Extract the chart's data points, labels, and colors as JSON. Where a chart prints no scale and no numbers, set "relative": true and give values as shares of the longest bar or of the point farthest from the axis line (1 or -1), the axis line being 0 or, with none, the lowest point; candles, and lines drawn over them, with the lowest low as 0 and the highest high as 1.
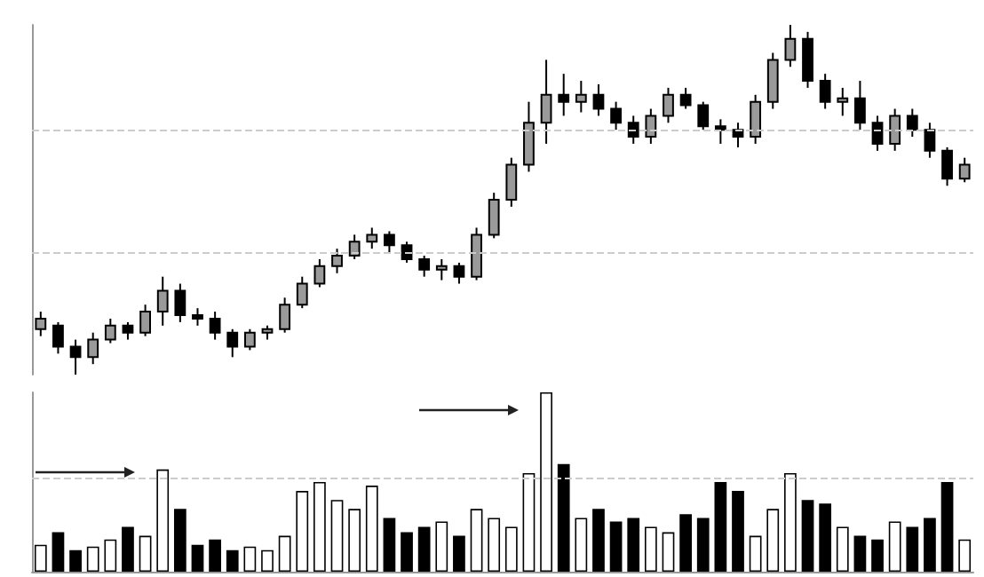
{
  "chart_data": [
    {
      "type": "candlestick",
      "relative": true,
      "color": "#000000",
      "grid": false,
      "categories": [
        null,
        null,
        null,
        null,
        null,
        null,
        null,
        null,
        null,
        null,
        null,
        null,
        null,
        null,
        null,
        null,
        null,
        null,
        null,
        null,
        null,
        null,
        null,
        null,
        null,
        null,
        null,
        null,
        null,
        null,
        null,
        null,
        null,
        null,
        null,
        null,
        null,
        null,
        null,
        null,
        null,
        null,
        null,
        null,
        null,
        null,
        null,
        null,
        null,
        null,
        null,
        null,
        null,
        null
      ],
      "ohlc": [
        [
          0.13,
          0.18,
          0.11,
          0.16
        ],
        [
          0.14,
          0.15,
          0.06,
          0.08
        ],
        [
          0.08,
          0.1,
          0.0,
          0.05
        ],
        [
          0.05,
          0.12,
          0.03,
          0.1
        ],
        [
          0.1,
          0.16,
          0.09,
          0.14
        ],
        [
          0.14,
          0.15,
          0.1,
          0.12
        ],
        [
          0.12,
          0.2,
          0.11,
          0.18
        ],
        [
          0.18,
          0.28,
          0.14,
          0.24
        ],
        [
          0.24,
          0.26,
          0.15,
          0.17
        ],
        [
          0.17,
          0.19,
          0.14,
          0.16
        ],
        [
          0.16,
          0.18,
          0.1,
          0.12
        ],
        [
          0.12,
          0.13,
          0.05,
          0.08
        ],
        [
          0.08,
          0.13,
          0.07,
          0.12
        ],
        [
          0.12,
          0.14,
          0.1,
          0.13
        ],
        [
          0.13,
          0.22,
          0.12,
          0.2
        ],
        [
          0.2,
          0.28,
          0.19,
          0.26
        ],
        [
          0.26,
          0.33,
          0.25,
          0.31
        ],
        [
          0.31,
          0.36,
          0.29,
          0.34
        ],
        [
          0.34,
          0.4,
          0.33,
          0.38
        ],
        [
          0.38,
          0.42,
          0.36,
          0.4
        ],
        [
          0.4,
          0.41,
          0.35,
          0.37
        ],
        [
          0.37,
          0.38,
          0.32,
          0.33
        ],
        [
          0.33,
          0.34,
          0.28,
          0.3
        ],
        [
          0.3,
          0.33,
          0.27,
          0.31
        ],
        [
          0.31,
          0.32,
          0.26,
          0.28
        ],
        [
          0.28,
          0.42,
          0.27,
          0.4
        ],
        [
          0.4,
          0.52,
          0.39,
          0.5
        ],
        [
          0.5,
          0.62,
          0.48,
          0.6
        ],
        [
          0.6,
          0.78,
          0.58,
          0.72
        ],
        [
          0.72,
          0.9,
          0.66,
          0.8
        ],
        [
          0.8,
          0.86,
          0.74,
          0.78
        ],
        [
          0.78,
          0.84,
          0.75,
          0.8
        ],
        [
          0.8,
          0.83,
          0.74,
          0.76
        ],
        [
          0.76,
          0.78,
          0.7,
          0.72
        ],
        [
          0.72,
          0.74,
          0.66,
          0.68
        ],
        [
          0.68,
          0.76,
          0.66,
          0.74
        ],
        [
          0.74,
          0.82,
          0.72,
          0.8
        ],
        [
          0.8,
          0.82,
          0.76,
          0.77
        ],
        [
          0.77,
          0.78,
          0.7,
          0.71
        ],
        [
          0.71,
          0.73,
          0.66,
          0.7
        ],
        [
          0.7,
          0.72,
          0.65,
          0.68
        ],
        [
          0.68,
          0.8,
          0.66,
          0.78
        ],
        [
          0.78,
          0.92,
          0.76,
          0.9
        ],
        [
          0.9,
          1.0,
          0.88,
          0.96
        ],
        [
          0.96,
          0.98,
          0.82,
          0.84
        ],
        [
          0.84,
          0.86,
          0.76,
          0.78
        ],
        [
          0.78,
          0.82,
          0.74,
          0.79
        ],
        [
          0.79,
          0.84,
          0.7,
          0.72
        ],
        [
          0.72,
          0.74,
          0.64,
          0.66
        ],
        [
          0.66,
          0.76,
          0.64,
          0.74
        ],
        [
          0.74,
          0.76,
          0.68,
          0.7
        ],
        [
          0.7,
          0.72,
          0.62,
          0.64
        ],
        [
          0.64,
          0.65,
          0.54,
          0.56
        ],
        [
          0.56,
          0.62,
          0.55,
          0.6
        ]
      ],
      "ref_lines": [
        {
          "axis": "y",
          "value": 0.7,
          "color": "#cccccc",
          "line_style": "dashed"
        },
        {
          "axis": "y",
          "value": 0.35,
          "color": "#cccccc",
          "line_style": "dashed"
        }
      ]
    },
    {
      "type": "bar",
      "relative": true,
      "grid": false,
      "categories": [
        null,
        null,
        null,
        null,
        null,
        null,
        null,
        null,
        null,
        null,
        null,
        null,
        null,
        null,
        null,
        null,
        null,
        null,
        null,
        null,
        null,
        null,
        null,
        null,
        null,
        null,
        null,
        null,
        null,
        null,
        null,
        null,
        null,
        null,
        null,
        null,
        null,
        null,
        null,
        null,
        null,
        null,
        null,
        null,
        null,
        null,
        null,
        null,
        null,
        null,
        null,
        null,
        null,
        null
      ],
      "values": [
        0.15,
        0.22,
        0.12,
        0.14,
        0.18,
        0.25,
        0.2,
        0.57,
        0.35,
        0.15,
        0.18,
        0.12,
        0.14,
        0.12,
        0.2,
        0.45,
        0.5,
        0.4,
        0.35,
        0.48,
        0.3,
        0.22,
        0.25,
        0.28,
        0.2,
        0.35,
        0.3,
        0.25,
        0.55,
        1.0,
        0.6,
        0.3,
        0.35,
        0.28,
        0.3,
        0.25,
        0.22,
        0.32,
        0.3,
        0.5,
        0.45,
        0.2,
        0.35,
        0.55,
        0.4,
        0.38,
        0.25,
        0.2,
        0.18,
        0.28,
        0.25,
        0.3,
        0.5,
        0.18
      ],
      "colors": [
        "#ffffff",
        "#000000",
        "#000000",
        "#ffffff",
        "#ffffff",
        "#000000",
        "#ffffff",
        "#ffffff",
        "#000000",
        "#000000",
        "#000000",
        "#000000",
        "#ffffff",
        "#ffffff",
        "#ffffff",
        "#ffffff",
        "#ffffff",
        "#ffffff",
        "#ffffff",
        "#ffffff",
        "#000000",
        "#000000",
        "#000000",
        "#ffffff",
        "#000000",
        "#ffffff",
        "#ffffff",
        "#ffffff",
        "#ffffff",
        "#ffffff",
        "#000000",
        "#ffffff",
        "#000000",
        "#000000",
        "#000000",
        "#ffffff",
        "#ffffff",
        "#000000",
        "#000000",
        "#000000",
        "#000000",
        "#ffffff",
        "#ffffff",
        "#ffffff",
        "#000000",
        "#000000",
        "#ffffff",
        "#000000",
        "#000000",
        "#ffffff",
        "#000000",
        "#000000",
        "#000000",
        "#ffffff"
      ],
      "ref_lines": [
        {
          "axis": "y",
          "value": 0.52,
          "color": "#cccccc",
          "line_style": "dashed"
        }
      ]
    }
  ]
}
